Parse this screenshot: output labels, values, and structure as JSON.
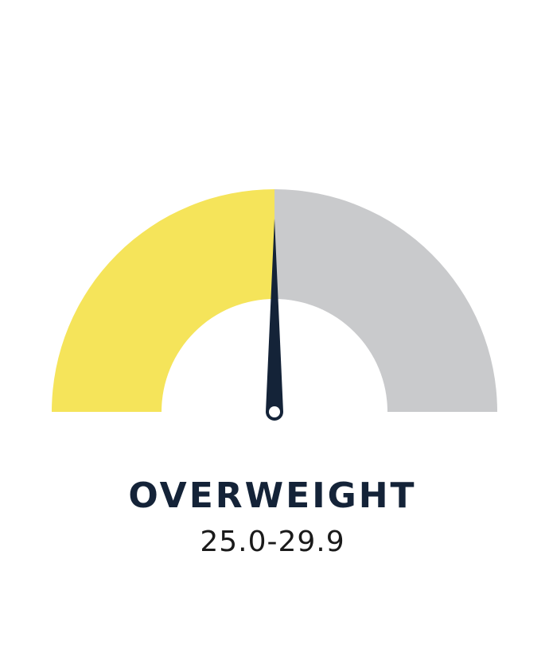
{
  "gauge": {
    "level_fraction": 0.5,
    "filled_color": "#F5E45A",
    "empty_color": "#C9CACC",
    "needle_color": "#142338",
    "pivot_color": "#FFFFFF"
  },
  "category": {
    "label": "OVERWEIGHT",
    "range": "25.0-29.9"
  }
}
